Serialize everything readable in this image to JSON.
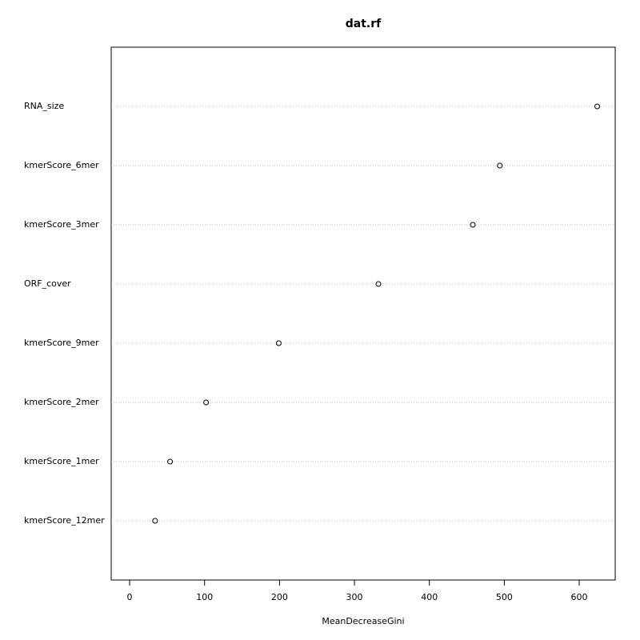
{
  "chart_data": {
    "type": "dot",
    "title": "dat.rf",
    "x_label": "MeanDecreaseGini",
    "categories": [
      "RNA_size",
      "kmerScore_6mer",
      "kmerScore_3mer",
      "ORF_cover",
      "kmerScore_9mer",
      "kmerScore_2mer",
      "kmerScore_1mer",
      "kmerScore_12mer"
    ],
    "values": [
      624,
      494,
      458,
      332,
      199,
      102,
      54,
      34
    ],
    "xlim": [
      -24.6,
      648
    ],
    "xticks": [
      0,
      100,
      200,
      300,
      400,
      500,
      600
    ],
    "grid": true,
    "color": "#000000"
  }
}
